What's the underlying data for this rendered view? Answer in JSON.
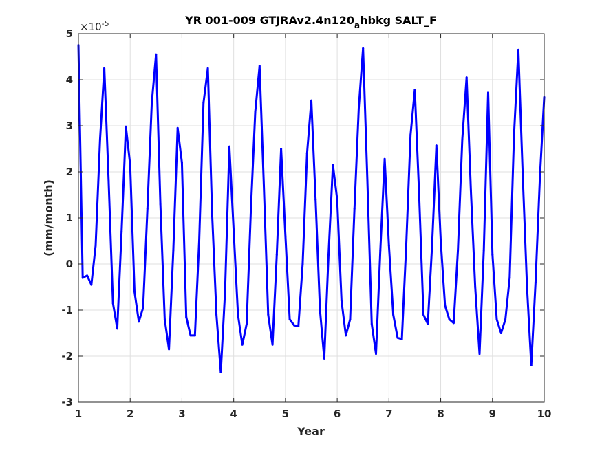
{
  "chart_data": {
    "type": "line",
    "title_main": "YR 001-009 GTJRAv2.4n120",
    "title_sub": "a",
    "title_tail": "hbkg SALT_F",
    "xlabel": "Year",
    "ylabel": "(mm/month)",
    "y_exponent_base": "×10",
    "y_exponent_power": "-5",
    "xlim": [
      1,
      10
    ],
    "ylim": [
      -3,
      5
    ],
    "x_ticks": [
      1,
      2,
      3,
      4,
      5,
      6,
      7,
      8,
      9,
      10
    ],
    "y_ticks": [
      -3,
      -2,
      -1,
      0,
      1,
      2,
      3,
      4,
      5
    ],
    "grid": true,
    "line_color": "#0000ff",
    "axis_color": "#262626",
    "grid_color": "#dfdfdf",
    "series": [
      {
        "values": [
          [
            1.0,
            4.75
          ],
          [
            1.083,
            -0.3
          ],
          [
            1.167,
            -0.25
          ],
          [
            1.25,
            -0.45
          ],
          [
            1.333,
            0.4
          ],
          [
            1.417,
            2.7
          ],
          [
            1.5,
            4.25
          ],
          [
            1.583,
            1.8
          ],
          [
            1.667,
            -0.85
          ],
          [
            1.75,
            -1.4
          ],
          [
            1.833,
            0.7
          ],
          [
            1.917,
            2.98
          ],
          [
            2.0,
            2.15
          ],
          [
            2.083,
            -0.6
          ],
          [
            2.167,
            -1.25
          ],
          [
            2.25,
            -0.95
          ],
          [
            2.333,
            1.2
          ],
          [
            2.417,
            3.5
          ],
          [
            2.5,
            4.55
          ],
          [
            2.583,
            1.3
          ],
          [
            2.667,
            -1.2
          ],
          [
            2.75,
            -1.85
          ],
          [
            2.833,
            0.3
          ],
          [
            2.917,
            2.95
          ],
          [
            3.0,
            2.2
          ],
          [
            3.083,
            -1.15
          ],
          [
            3.167,
            -1.55
          ],
          [
            3.25,
            -1.55
          ],
          [
            3.333,
            0.5
          ],
          [
            3.417,
            3.5
          ],
          [
            3.5,
            4.25
          ],
          [
            3.583,
            1.1
          ],
          [
            3.667,
            -1.1
          ],
          [
            3.75,
            -2.35
          ],
          [
            3.833,
            -0.6
          ],
          [
            3.917,
            2.55
          ],
          [
            4.0,
            0.7
          ],
          [
            4.083,
            -1.1
          ],
          [
            4.167,
            -1.75
          ],
          [
            4.25,
            -1.3
          ],
          [
            4.333,
            1.2
          ],
          [
            4.417,
            3.3
          ],
          [
            4.5,
            4.3
          ],
          [
            4.583,
            1.7
          ],
          [
            4.667,
            -1.1
          ],
          [
            4.75,
            -1.75
          ],
          [
            4.833,
            0.2
          ],
          [
            4.917,
            2.5
          ],
          [
            5.0,
            0.6
          ],
          [
            5.083,
            -1.2
          ],
          [
            5.167,
            -1.33
          ],
          [
            5.25,
            -1.35
          ],
          [
            5.333,
            0.0
          ],
          [
            5.417,
            2.4
          ],
          [
            5.5,
            3.55
          ],
          [
            5.583,
            1.4
          ],
          [
            5.667,
            -1.0
          ],
          [
            5.75,
            -2.05
          ],
          [
            5.833,
            0.2
          ],
          [
            5.917,
            2.15
          ],
          [
            6.0,
            1.4
          ],
          [
            6.083,
            -0.8
          ],
          [
            6.167,
            -1.55
          ],
          [
            6.25,
            -1.2
          ],
          [
            6.333,
            1.2
          ],
          [
            6.417,
            3.4
          ],
          [
            6.5,
            4.68
          ],
          [
            6.583,
            1.8
          ],
          [
            6.667,
            -1.3
          ],
          [
            6.75,
            -1.95
          ],
          [
            6.833,
            0.3
          ],
          [
            6.917,
            2.28
          ],
          [
            7.0,
            0.4
          ],
          [
            7.083,
            -1.1
          ],
          [
            7.167,
            -1.6
          ],
          [
            7.25,
            -1.63
          ],
          [
            7.333,
            0.4
          ],
          [
            7.417,
            2.8
          ],
          [
            7.5,
            3.78
          ],
          [
            7.583,
            1.5
          ],
          [
            7.667,
            -1.1
          ],
          [
            7.75,
            -1.3
          ],
          [
            7.833,
            0.4
          ],
          [
            7.917,
            2.57
          ],
          [
            8.0,
            0.5
          ],
          [
            8.083,
            -0.9
          ],
          [
            8.167,
            -1.2
          ],
          [
            8.25,
            -1.28
          ],
          [
            8.333,
            0.3
          ],
          [
            8.417,
            2.7
          ],
          [
            8.5,
            4.05
          ],
          [
            8.583,
            1.6
          ],
          [
            8.667,
            -0.5
          ],
          [
            8.75,
            -1.95
          ],
          [
            8.833,
            0.3
          ],
          [
            8.917,
            3.72
          ],
          [
            9.0,
            0.2
          ],
          [
            9.083,
            -1.2
          ],
          [
            9.167,
            -1.5
          ],
          [
            9.25,
            -1.2
          ],
          [
            9.333,
            -0.3
          ],
          [
            9.417,
            2.8
          ],
          [
            9.5,
            4.65
          ],
          [
            9.583,
            2.0
          ],
          [
            9.667,
            -0.5
          ],
          [
            9.75,
            -2.2
          ],
          [
            9.833,
            -0.4
          ],
          [
            9.917,
            1.9
          ],
          [
            10.0,
            3.62
          ]
        ]
      }
    ]
  }
}
